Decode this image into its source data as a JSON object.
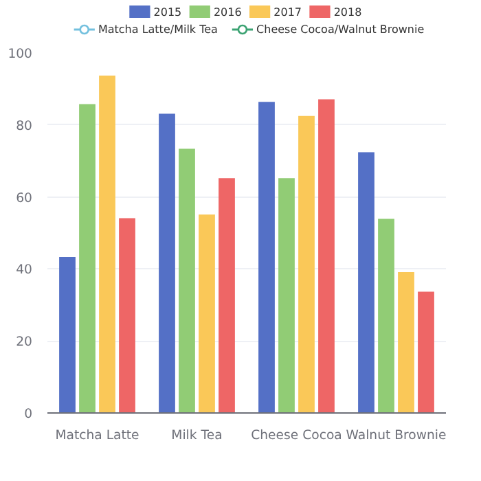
{
  "chart_data": {
    "type": "bar",
    "categories": [
      "Matcha Latte",
      "Milk Tea",
      "Cheese Cocoa",
      "Walnut Brownie"
    ],
    "series": [
      {
        "name": "2015",
        "color": "#5470c6",
        "values": [
          43.3,
          83.1,
          86.4,
          72.4
        ]
      },
      {
        "name": "2016",
        "color": "#91cc75",
        "values": [
          85.8,
          73.4,
          65.2,
          53.9
        ]
      },
      {
        "name": "2017",
        "color": "#fac858",
        "values": [
          93.7,
          55.1,
          82.5,
          39.1
        ]
      },
      {
        "name": "2018",
        "color": "#ee6666",
        "values": [
          54.1,
          65.2,
          87.1,
          33.7
        ]
      },
      {
        "name": "Matcha Latte/Milk Tea",
        "type": "line",
        "marker": "circle",
        "color": "#73c0de",
        "values": [
          null,
          null,
          null,
          null
        ]
      },
      {
        "name": "Cheese Cocoa/Walnut Brownie",
        "type": "line",
        "marker": "circle",
        "color": "#3ba272",
        "values": [
          null,
          null,
          null,
          null
        ]
      }
    ],
    "ylim": [
      0,
      100
    ],
    "yticks": [
      0,
      20,
      40,
      60,
      80,
      100
    ],
    "grid": "y",
    "legend": "top"
  }
}
